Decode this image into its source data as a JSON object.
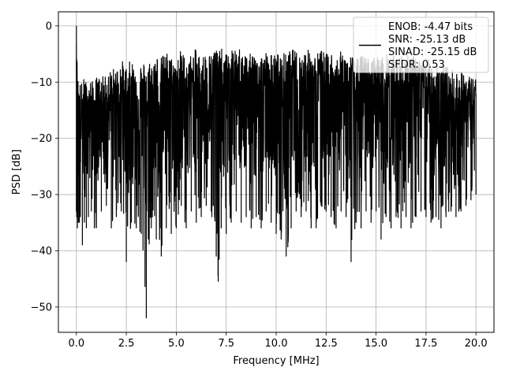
{
  "chart_data": {
    "type": "line",
    "title": "",
    "xlabel": "Frequency [MHz]",
    "ylabel": "PSD [dB]",
    "xlim": [
      -0.9,
      20.9
    ],
    "ylim": [
      -54.5,
      2.5
    ],
    "x_ticks": [
      0.0,
      2.5,
      5.0,
      7.5,
      10.0,
      12.5,
      15.0,
      17.5,
      20.0
    ],
    "x_tick_labels": [
      "0.0",
      "2.5",
      "5.0",
      "7.5",
      "10.0",
      "12.5",
      "15.0",
      "17.5",
      "20.0"
    ],
    "y_ticks": [
      0,
      -10,
      -20,
      -30,
      -40,
      -50
    ],
    "y_tick_labels": [
      "0",
      "−10",
      "−20",
      "−30",
      "−40",
      "−50"
    ],
    "grid": true,
    "legend_position": "top-right",
    "legend": [
      "ENOB: -4.47 bits",
      "SNR: -25.13 dB",
      "SINAD: -25.15 dB",
      "SFDR: 0.53"
    ],
    "line_color": "#000000",
    "series": [
      {
        "x": [
          0.0,
          0.02,
          0.05,
          0.1,
          0.15,
          0.2,
          0.3,
          0.4,
          0.5,
          0.6,
          0.75,
          0.9,
          1.0,
          1.25,
          1.5,
          1.75,
          2.0,
          2.25,
          2.5,
          2.75,
          3.0,
          3.25,
          3.5,
          3.75,
          4.0,
          4.25,
          4.5,
          4.75,
          5.0,
          5.25,
          5.5,
          5.75,
          6.0,
          6.25,
          6.5,
          6.75,
          7.0,
          7.1,
          7.25,
          7.5,
          7.75,
          8.0,
          8.25,
          8.5,
          8.75,
          9.0,
          9.25,
          9.5,
          9.75,
          10.0,
          10.25,
          10.5,
          10.75,
          11.0,
          11.25,
          11.5,
          11.75,
          12.0,
          12.25,
          12.5,
          12.75,
          13.0,
          13.25,
          13.5,
          13.75,
          14.0,
          14.25,
          14.5,
          14.75,
          15.0,
          15.25,
          15.5,
          15.75,
          16.0,
          16.25,
          16.5,
          16.75,
          17.0,
          17.25,
          17.5,
          17.75,
          18.0,
          18.25,
          18.5,
          18.75,
          19.0,
          19.25,
          19.5,
          19.75,
          20.0
        ],
        "values_max": [
          0.0,
          -3.0,
          -8.0,
          -9.0,
          -9.5,
          -10.0,
          -10.0,
          -9.0,
          -10.0,
          -10.0,
          -9.5,
          -10.5,
          -9.0,
          -9.0,
          -9.0,
          -7.5,
          -7.5,
          -6.0,
          -7.0,
          -6.0,
          -7.0,
          -6.5,
          -6.0,
          -6.0,
          -5.0,
          -5.5,
          -4.5,
          -5.5,
          -6.0,
          -4.0,
          -6.0,
          -5.0,
          -4.0,
          -5.5,
          -4.5,
          -5.0,
          -3.0,
          -4.5,
          -4.0,
          -5.0,
          -4.0,
          -4.5,
          -3.5,
          -5.0,
          -5.0,
          -4.0,
          -5.0,
          -4.5,
          -5.0,
          -5.0,
          -4.5,
          -5.0,
          -4.0,
          -4.5,
          -5.0,
          -4.0,
          -4.5,
          -5.0,
          -4.0,
          -5.0,
          -4.5,
          -5.5,
          -4.5,
          -5.0,
          -5.0,
          -6.0,
          -5.0,
          -5.5,
          -6.0,
          -5.0,
          -5.5,
          -5.0,
          -5.0,
          -5.5,
          -5.0,
          -5.0,
          -5.5,
          -5.0,
          -6.0,
          -6.0,
          -6.0,
          -6.0,
          -6.5,
          -7.0,
          -7.5,
          -8.0,
          -8.0,
          -8.5,
          -9.0,
          -9.0
        ],
        "values_min": [
          -33.0,
          -34.0,
          -36.0,
          -35.0,
          -35.0,
          -34.0,
          -39.0,
          -35.0,
          -36.0,
          -34.0,
          -33.0,
          -36.0,
          -36.0,
          -33.0,
          -32.0,
          -36.0,
          -34.0,
          -33.0,
          -42.0,
          -35.0,
          -36.0,
          -37.0,
          -52.0,
          -36.0,
          -38.0,
          -41.0,
          -36.0,
          -37.0,
          -36.0,
          -32.0,
          -36.0,
          -33.0,
          -35.0,
          -34.0,
          -32.0,
          -33.0,
          -41.0,
          -45.5,
          -36.0,
          -37.0,
          -35.0,
          -33.0,
          -35.0,
          -34.0,
          -36.0,
          -34.0,
          -36.0,
          -33.0,
          -35.0,
          -37.0,
          -38.0,
          -41.0,
          -36.0,
          -33.0,
          -34.0,
          -33.0,
          -36.0,
          -36.0,
          -32.0,
          -33.0,
          -34.0,
          -36.0,
          -33.0,
          -34.0,
          -42.0,
          -35.0,
          -36.0,
          -33.0,
          -35.0,
          -33.0,
          -38.0,
          -34.0,
          -36.0,
          -34.0,
          -36.0,
          -34.0,
          -36.0,
          -34.0,
          -33.0,
          -34.0,
          -35.0,
          -34.0,
          -36.0,
          -34.0,
          -33.0,
          -34.0,
          -33.0,
          -32.0,
          -31.0,
          -30.0
        ]
      }
    ]
  }
}
